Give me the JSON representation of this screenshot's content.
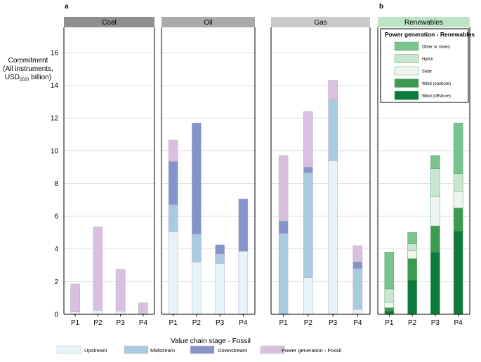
{
  "chart_data": {
    "type": "bar",
    "stacked": true,
    "panel_letters": [
      "a",
      "b"
    ],
    "ylabel": {
      "line1": "Commitment",
      "line2": "(All instruments,",
      "line3_prefix": "USD",
      "line3_sub": "2020",
      "line3_suffix": " billion)"
    },
    "ylim": [
      0,
      17.5
    ],
    "yticks": [
      "0",
      "2",
      "4",
      "6",
      "8",
      "10",
      "12",
      "14",
      "16"
    ],
    "categories": [
      "P1",
      "P2",
      "P3",
      "P4"
    ],
    "panels": [
      {
        "title": "Coal",
        "header_color": "#8e908f",
        "series": [
          {
            "name": "Upstream",
            "values": [
              0.15,
              0.25,
              0.2,
              0
            ]
          },
          {
            "name": "Midstream",
            "values": [
              0,
              0,
              0,
              0
            ]
          },
          {
            "name": "Downstream",
            "values": [
              0,
              0,
              0,
              0
            ]
          },
          {
            "name": "Power generation - Fossil",
            "values": [
              1.7,
              5.1,
              2.55,
              0.7
            ]
          }
        ]
      },
      {
        "title": "Oil",
        "header_color": "#a9aaa9",
        "series": [
          {
            "name": "Upstream",
            "values": [
              5.05,
              3.2,
              3.1,
              3.85
            ]
          },
          {
            "name": "Midstream",
            "values": [
              1.65,
              1.7,
              0.6,
              0
            ]
          },
          {
            "name": "Downstream",
            "values": [
              2.65,
              6.8,
              0.55,
              3.2
            ]
          },
          {
            "name": "Power generation - Fossil",
            "values": [
              1.3,
              0,
              0,
              0
            ]
          }
        ]
      },
      {
        "title": "Gas",
        "header_color": "#c9cac9",
        "series": [
          {
            "name": "Upstream",
            "values": [
              0.05,
              2.25,
              9.4,
              0.3
            ]
          },
          {
            "name": "Midstream",
            "values": [
              4.9,
              6.4,
              3.7,
              2.5
            ]
          },
          {
            "name": "Downstream",
            "values": [
              0.75,
              0.35,
              0,
              0.4
            ]
          },
          {
            "name": "Power generation - Fossil",
            "values": [
              4.0,
              3.4,
              1.2,
              1.0
            ]
          }
        ]
      },
      {
        "title": "Renewables",
        "header_color": "#bde4c4",
        "series": [
          {
            "name": "Wind (offshore)",
            "values": [
              0.2,
              2.1,
              3.8,
              5.1
            ]
          },
          {
            "name": "Wind (onshore)",
            "values": [
              0.2,
              1.3,
              1.6,
              1.4
            ]
          },
          {
            "name": "Solar",
            "values": [
              0.35,
              0.5,
              1.8,
              1.0
            ]
          },
          {
            "name": "Hydro",
            "values": [
              0.8,
              0.4,
              1.7,
              1.1
            ]
          },
          {
            "name": "Other or mixed",
            "values": [
              2.25,
              0.7,
              0.8,
              3.1
            ]
          }
        ]
      }
    ],
    "fossil_colors": {
      "Upstream": "#e5f4f6",
      "Midstream": "#a9cbe0",
      "Downstream": "#8494c9",
      "Power generation - Fossil": "#d9c0de"
    },
    "renew_colors": {
      "Other or mixed": "#79c48d",
      "Hydro": "#c9e7d0",
      "Solar": "#eef6ef",
      "Wind (onshore)": "#3d9a4f",
      "Wind (offshore)": "#0b7a3a"
    },
    "legend_fossil": {
      "title": "Value chain stage - Fossil",
      "items": [
        "Upstream",
        "Midstream",
        "Downstream",
        "Power generation - Fossil"
      ]
    },
    "legend_renew": {
      "title": "Power generation - Renewables",
      "items": [
        "Other or mixed",
        "Hydro",
        "Solar",
        "Wind (onshore)",
        "Wind (offshore)"
      ]
    }
  }
}
